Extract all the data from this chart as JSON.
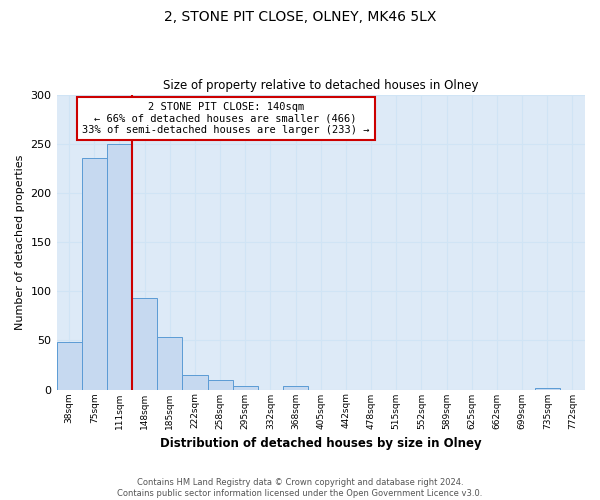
{
  "title": "2, STONE PIT CLOSE, OLNEY, MK46 5LX",
  "subtitle": "Size of property relative to detached houses in Olney",
  "xlabel": "Distribution of detached houses by size in Olney",
  "ylabel": "Number of detached properties",
  "bin_labels": [
    "38sqm",
    "75sqm",
    "111sqm",
    "148sqm",
    "185sqm",
    "222sqm",
    "258sqm",
    "295sqm",
    "332sqm",
    "368sqm",
    "405sqm",
    "442sqm",
    "478sqm",
    "515sqm",
    "552sqm",
    "589sqm",
    "625sqm",
    "662sqm",
    "699sqm",
    "735sqm",
    "772sqm"
  ],
  "bar_values": [
    48,
    235,
    250,
    93,
    53,
    15,
    10,
    4,
    0,
    4,
    0,
    0,
    0,
    0,
    0,
    0,
    0,
    0,
    0,
    2,
    0
  ],
  "bar_color": "#c6d9f0",
  "bar_edge_color": "#5b9bd5",
  "vline_color": "#cc0000",
  "ylim": [
    0,
    300
  ],
  "yticks": [
    0,
    50,
    100,
    150,
    200,
    250,
    300
  ],
  "annotation_title": "2 STONE PIT CLOSE: 140sqm",
  "annotation_line1": "← 66% of detached houses are smaller (466)",
  "annotation_line2": "33% of semi-detached houses are larger (233) →",
  "annotation_box_color": "#cc0000",
  "footnote1": "Contains HM Land Registry data © Crown copyright and database right 2024.",
  "footnote2": "Contains public sector information licensed under the Open Government Licence v3.0.",
  "grid_color": "#d0e4f5",
  "background_color": "#ddeaf7"
}
